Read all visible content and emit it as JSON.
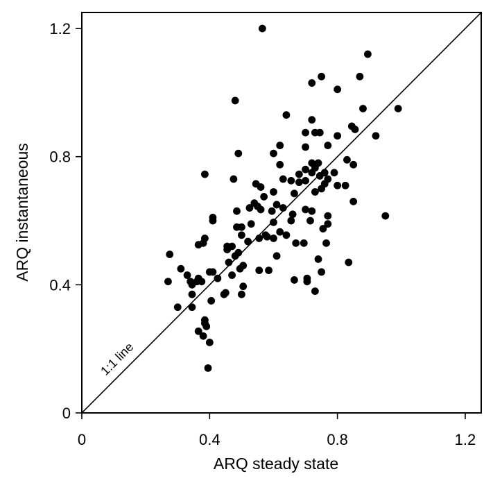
{
  "chart_data": {
    "type": "scatter",
    "xlabel": "ARQ steady state",
    "ylabel": "ARQ instantaneous",
    "xlim": [
      0,
      1.25
    ],
    "ylim": [
      0,
      1.25
    ],
    "xticks": [
      0,
      0.4,
      0.8,
      1.2
    ],
    "yticks": [
      0,
      0.4,
      0.8,
      1.2
    ],
    "xtick_labels": [
      "0",
      "0.4",
      "0.8",
      "1.2"
    ],
    "ytick_labels": [
      "0",
      "0.4",
      "0.8",
      "1.2"
    ],
    "grid": false,
    "reference_line": {
      "label": "1:1 line",
      "slope": 1,
      "intercept": 0
    },
    "marker_color": "#000000",
    "points": [
      [
        0.565,
        1.2
      ],
      [
        0.895,
        1.12
      ],
      [
        0.75,
        1.05
      ],
      [
        0.87,
        1.05
      ],
      [
        0.72,
        1.03
      ],
      [
        0.8,
        1.01
      ],
      [
        0.48,
        0.975
      ],
      [
        0.64,
        0.93
      ],
      [
        0.88,
        0.95
      ],
      [
        0.99,
        0.95
      ],
      [
        0.72,
        0.915
      ],
      [
        0.845,
        0.895
      ],
      [
        0.855,
        0.885
      ],
      [
        0.73,
        0.875
      ],
      [
        0.745,
        0.875
      ],
      [
        0.7,
        0.875
      ],
      [
        0.92,
        0.865
      ],
      [
        0.8,
        0.865
      ],
      [
        0.77,
        0.835
      ],
      [
        0.62,
        0.835
      ],
      [
        0.7,
        0.83
      ],
      [
        0.6,
        0.81
      ],
      [
        0.49,
        0.81
      ],
      [
        0.83,
        0.79
      ],
      [
        0.85,
        0.775
      ],
      [
        0.72,
        0.78
      ],
      [
        0.74,
        0.78
      ],
      [
        0.62,
        0.775
      ],
      [
        0.73,
        0.765
      ],
      [
        0.7,
        0.76
      ],
      [
        0.76,
        0.75
      ],
      [
        0.79,
        0.75
      ],
      [
        0.72,
        0.75
      ],
      [
        0.385,
        0.745
      ],
      [
        0.68,
        0.745
      ],
      [
        0.745,
        0.74
      ],
      [
        0.77,
        0.73
      ],
      [
        0.63,
        0.73
      ],
      [
        0.655,
        0.725
      ],
      [
        0.7,
        0.725
      ],
      [
        0.68,
        0.72
      ],
      [
        0.475,
        0.73
      ],
      [
        0.76,
        0.715
      ],
      [
        0.8,
        0.71
      ],
      [
        0.825,
        0.71
      ],
      [
        0.545,
        0.715
      ],
      [
        0.56,
        0.705
      ],
      [
        0.75,
        0.7
      ],
      [
        0.73,
        0.69
      ],
      [
        0.6,
        0.69
      ],
      [
        0.665,
        0.685
      ],
      [
        0.57,
        0.675
      ],
      [
        0.85,
        0.66
      ],
      [
        0.54,
        0.655
      ],
      [
        0.55,
        0.645
      ],
      [
        0.63,
        0.64
      ],
      [
        0.61,
        0.65
      ],
      [
        0.525,
        0.64
      ],
      [
        0.56,
        0.635
      ],
      [
        0.595,
        0.63
      ],
      [
        0.7,
        0.635
      ],
      [
        0.72,
        0.63
      ],
      [
        0.485,
        0.63
      ],
      [
        0.66,
        0.62
      ],
      [
        0.77,
        0.615
      ],
      [
        0.95,
        0.615
      ],
      [
        0.41,
        0.61
      ],
      [
        0.41,
        0.6
      ],
      [
        0.655,
        0.6
      ],
      [
        0.715,
        0.6
      ],
      [
        0.6,
        0.595
      ],
      [
        0.53,
        0.59
      ],
      [
        0.77,
        0.59
      ],
      [
        0.485,
        0.58
      ],
      [
        0.5,
        0.58
      ],
      [
        0.755,
        0.575
      ],
      [
        0.62,
        0.565
      ],
      [
        0.575,
        0.555
      ],
      [
        0.64,
        0.555
      ],
      [
        0.385,
        0.545
      ],
      [
        0.58,
        0.55
      ],
      [
        0.5,
        0.555
      ],
      [
        0.365,
        0.525
      ],
      [
        0.38,
        0.53
      ],
      [
        0.555,
        0.545
      ],
      [
        0.6,
        0.545
      ],
      [
        0.52,
        0.535
      ],
      [
        0.765,
        0.53
      ],
      [
        0.695,
        0.53
      ],
      [
        0.67,
        0.53
      ],
      [
        0.455,
        0.52
      ],
      [
        0.47,
        0.52
      ],
      [
        0.455,
        0.51
      ],
      [
        0.275,
        0.495
      ],
      [
        0.49,
        0.5
      ],
      [
        0.48,
        0.49
      ],
      [
        0.61,
        0.49
      ],
      [
        0.74,
        0.48
      ],
      [
        0.46,
        0.47
      ],
      [
        0.835,
        0.47
      ],
      [
        0.505,
        0.46
      ],
      [
        0.495,
        0.45
      ],
      [
        0.31,
        0.45
      ],
      [
        0.585,
        0.445
      ],
      [
        0.555,
        0.445
      ],
      [
        0.4,
        0.44
      ],
      [
        0.41,
        0.44
      ],
      [
        0.75,
        0.44
      ],
      [
        0.47,
        0.43
      ],
      [
        0.425,
        0.42
      ],
      [
        0.33,
        0.43
      ],
      [
        0.365,
        0.42
      ],
      [
        0.36,
        0.41
      ],
      [
        0.34,
        0.41
      ],
      [
        0.27,
        0.41
      ],
      [
        0.705,
        0.42
      ],
      [
        0.665,
        0.415
      ],
      [
        0.705,
        0.41
      ],
      [
        0.375,
        0.41
      ],
      [
        0.345,
        0.4
      ],
      [
        0.505,
        0.395
      ],
      [
        0.73,
        0.38
      ],
      [
        0.45,
        0.375
      ],
      [
        0.445,
        0.37
      ],
      [
        0.345,
        0.37
      ],
      [
        0.5,
        0.37
      ],
      [
        0.3,
        0.33
      ],
      [
        0.405,
        0.35
      ],
      [
        0.345,
        0.33
      ],
      [
        0.385,
        0.29
      ],
      [
        0.385,
        0.28
      ],
      [
        0.39,
        0.27
      ],
      [
        0.365,
        0.255
      ],
      [
        0.38,
        0.24
      ],
      [
        0.4,
        0.22
      ],
      [
        0.395,
        0.14
      ]
    ]
  }
}
